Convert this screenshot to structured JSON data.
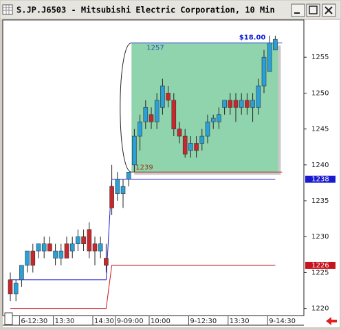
{
  "chart_data": {
    "type": "candlestick",
    "title": "S.JP.J6503 - Mitsubishi Electric Corporation, 10 Min",
    "categories": [
      null,
      null,
      "6-12:30",
      null,
      null,
      null,
      null,
      null,
      "13:30",
      null,
      null,
      null,
      null,
      null,
      null,
      "14:30",
      null,
      null,
      null,
      "9-09:00",
      null,
      null,
      null,
      null,
      null,
      "10:00",
      null,
      null,
      null,
      null,
      null,
      null,
      "9-12:30",
      null,
      null,
      null,
      null,
      null,
      null,
      "13:30",
      null,
      null,
      null,
      null,
      null,
      null,
      "9-14:30",
      null
    ],
    "open": [
      1224,
      1222,
      1224,
      1226,
      1228,
      1228,
      1228,
      1229,
      1227,
      1227,
      1229,
      1228,
      1229,
      1230,
      1231,
      1229,
      1228,
      1227,
      1237,
      1236,
      1236,
      1238,
      1240,
      1244,
      1246,
      1247,
      1246,
      1248,
      1250,
      1249,
      1245,
      1244,
      1242,
      1243,
      1243,
      1244,
      1246,
      1246,
      1248,
      1249,
      1249,
      1248,
      1249,
      1248,
      1248,
      1251,
      1253,
      1256
    ],
    "high": [
      1225,
      1224,
      1226,
      1228,
      1229,
      1229,
      1230,
      1230,
      1229,
      1229,
      1230,
      1230,
      1231,
      1231,
      1232,
      1230,
      1230,
      1229,
      1240,
      1239,
      1238,
      1239,
      1245,
      1247,
      1249,
      1248,
      1250,
      1252,
      1251,
      1250,
      1246,
      1245,
      1244,
      1244,
      1245,
      1247,
      1247,
      1248,
      1249,
      1250,
      1250,
      1250,
      1250,
      1250,
      1252,
      1256,
      1258,
      1258
    ],
    "low": [
      1221,
      1221,
      1223,
      1225,
      1225,
      1227,
      1227,
      1228,
      1226,
      1226,
      1227,
      1227,
      1228,
      1228,
      1227,
      1226,
      1227,
      1225,
      1233,
      1235,
      1234,
      1237,
      1239,
      1242,
      1245,
      1245,
      1245,
      1247,
      1248,
      1244,
      1243,
      1241,
      1241,
      1241,
      1242,
      1243,
      1245,
      1245,
      1247,
      1247,
      1246,
      1247,
      1247,
      1246,
      1247,
      1250,
      1253,
      1256
    ],
    "close": [
      1222,
      1223.5,
      1226,
      1228,
      1226,
      1229,
      1229,
      1228,
      1228,
      1228,
      1227,
      1229,
      1230,
      1229,
      1228,
      1228,
      1229,
      1226,
      1234,
      1238,
      1237,
      1239,
      1244,
      1246,
      1248,
      1246,
      1249,
      1251,
      1249,
      1245,
      1244,
      1241.5,
      1243,
      1242,
      1244,
      1246,
      1246.5,
      1247,
      1249,
      1248,
      1248,
      1249,
      1248,
      1249,
      1251,
      1255,
      1257,
      1257.5
    ],
    "up_color": "#2aa0d8",
    "down_color": "#c8282d",
    "series": [
      {
        "color": "#1a1ad0",
        "values": [
          1224,
          1224,
          1224,
          1224,
          1224,
          1224,
          1224,
          1224,
          1224,
          1224,
          1224,
          1224,
          1224,
          1224,
          1224,
          1224,
          1224,
          1224,
          1238,
          1238,
          1238,
          1238,
          1238,
          1238,
          1238,
          1238,
          1238,
          1238,
          1238,
          1238,
          1238,
          1238,
          1238,
          1238,
          1238,
          1238,
          1238,
          1238,
          1238,
          1238,
          1238,
          1238,
          1238,
          1238,
          1238,
          1238,
          1238,
          1238
        ]
      },
      {
        "color": "#c8141e",
        "values": [
          1220,
          1220,
          1220,
          1220,
          1220,
          1220,
          1220,
          1220,
          1220,
          1220,
          1220,
          1220,
          1220,
          1220,
          1220,
          1220,
          1220,
          1220,
          1226,
          1226,
          1226,
          1226,
          1226,
          1226,
          1226,
          1226,
          1226,
          1226,
          1226,
          1226,
          1226,
          1226,
          1226,
          1226,
          1226,
          1226,
          1226,
          1226,
          1226,
          1226,
          1226,
          1226,
          1226,
          1226,
          1226,
          1226,
          1226,
          1226
        ]
      }
    ],
    "range_box": {
      "high": 1257,
      "low": 1239,
      "label": "$18.00",
      "color": "#8fd4ac"
    },
    "ylim": [
      1219.1,
      1260.1
    ],
    "yticks": [
      1220,
      1225,
      1230,
      1235,
      1240,
      1245,
      1250,
      1255
    ]
  }
}
